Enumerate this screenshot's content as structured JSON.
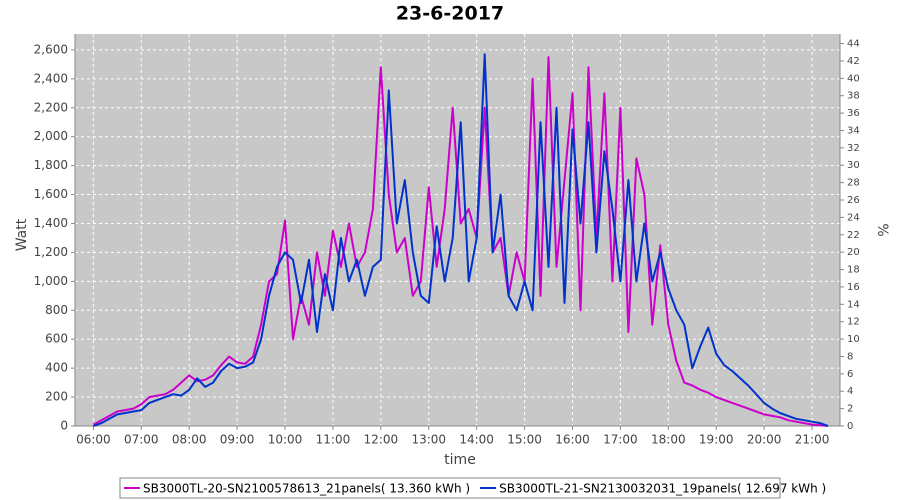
{
  "chart_data": {
    "type": "line",
    "title": "23-6-2017",
    "x_label": "time",
    "y_label": "Watt",
    "y2_label": "%",
    "x": [
      "06:00",
      "06:10",
      "06:20",
      "06:30",
      "06:40",
      "06:50",
      "07:00",
      "07:10",
      "07:20",
      "07:30",
      "07:40",
      "07:50",
      "08:00",
      "08:10",
      "08:20",
      "08:30",
      "08:40",
      "08:50",
      "09:00",
      "09:10",
      "09:20",
      "09:30",
      "09:40",
      "09:50",
      "10:00",
      "10:10",
      "10:20",
      "10:30",
      "10:40",
      "10:50",
      "11:00",
      "11:10",
      "11:20",
      "11:30",
      "11:40",
      "11:50",
      "12:00",
      "12:10",
      "12:20",
      "12:30",
      "12:40",
      "12:50",
      "13:00",
      "13:10",
      "13:20",
      "13:30",
      "13:40",
      "13:50",
      "14:00",
      "14:10",
      "14:20",
      "14:30",
      "14:40",
      "14:50",
      "15:00",
      "15:10",
      "15:20",
      "15:30",
      "15:40",
      "15:50",
      "16:00",
      "16:10",
      "16:20",
      "16:30",
      "16:40",
      "16:50",
      "17:00",
      "17:10",
      "17:20",
      "17:30",
      "17:40",
      "17:50",
      "18:00",
      "18:10",
      "18:20",
      "18:30",
      "18:40",
      "18:50",
      "19:00",
      "19:10",
      "19:20",
      "19:30",
      "19:40",
      "19:50",
      "20:00",
      "20:10",
      "20:20",
      "20:30",
      "20:40",
      "20:50",
      "21:00",
      "21:10",
      "21:20"
    ],
    "series": [
      {
        "name": "SB3000TL-20-SN2100578613_21panels( 13.360 kWh )",
        "color": "#cc00cc",
        "values": [
          10,
          40,
          70,
          100,
          110,
          120,
          150,
          200,
          210,
          220,
          250,
          300,
          350,
          310,
          320,
          350,
          420,
          480,
          440,
          430,
          480,
          700,
          1000,
          1050,
          1420,
          600,
          900,
          700,
          1200,
          900,
          1350,
          1100,
          1400,
          1100,
          1200,
          1500,
          2480,
          1600,
          1200,
          1300,
          900,
          1000,
          1650,
          1100,
          1500,
          2200,
          1400,
          1500,
          1300,
          2200,
          1200,
          1300,
          900,
          1200,
          1000,
          2400,
          900,
          2550,
          1100,
          1700,
          2300,
          800,
          2480,
          1300,
          2300,
          1000,
          2200,
          650,
          1850,
          1600,
          700,
          1250,
          700,
          450,
          300,
          280,
          250,
          230,
          200,
          180,
          160,
          140,
          120,
          100,
          80,
          70,
          60,
          40,
          30,
          20,
          10,
          5,
          0
        ]
      },
      {
        "name": "SB3000TL-21-SN2130032031_19panels( 12.697 kWh )",
        "color": "#0033cc",
        "values": [
          0,
          20,
          50,
          80,
          90,
          100,
          110,
          160,
          180,
          200,
          220,
          210,
          250,
          330,
          270,
          300,
          380,
          430,
          400,
          410,
          440,
          600,
          900,
          1100,
          1200,
          1150,
          850,
          1150,
          650,
          1050,
          800,
          1300,
          1000,
          1150,
          900,
          1100,
          1150,
          2320,
          1400,
          1700,
          1200,
          900,
          850,
          1380,
          1000,
          1300,
          2100,
          1000,
          1300,
          2570,
          1200,
          1600,
          900,
          800,
          1000,
          800,
          2100,
          1100,
          2200,
          850,
          2050,
          1400,
          2100,
          1200,
          1900,
          1500,
          1000,
          1700,
          1000,
          1400,
          1000,
          1200,
          950,
          800,
          700,
          400,
          550,
          680,
          500,
          420,
          380,
          330,
          280,
          220,
          160,
          120,
          90,
          70,
          50,
          40,
          30,
          20,
          0
        ]
      }
    ],
    "xlim": [
      "05:37",
      "21:35"
    ],
    "xticks": [
      "06:00",
      "07:00",
      "08:00",
      "09:00",
      "10:00",
      "11:00",
      "12:00",
      "13:00",
      "14:00",
      "15:00",
      "16:00",
      "17:00",
      "18:00",
      "19:00",
      "20:00",
      "21:00"
    ],
    "ylim": [
      0,
      2710
    ],
    "yticks": [
      0,
      200,
      400,
      600,
      800,
      {
        "value": 1000,
        "label": "1,000"
      },
      {
        "value": 1200,
        "label": "1,200"
      },
      {
        "value": 1400,
        "label": "1,400"
      },
      {
        "value": 1600,
        "label": "1,600"
      },
      {
        "value": 1800,
        "label": "1,800"
      },
      {
        "value": 2000,
        "label": "2,000"
      },
      {
        "value": 2200,
        "label": "2,200"
      },
      {
        "value": 2400,
        "label": "2,400"
      },
      {
        "value": 2600,
        "label": "2,600"
      }
    ],
    "y2lim": [
      0,
      45.1
    ],
    "y2ticks": [
      0,
      2,
      4,
      6,
      8,
      10,
      12,
      14,
      16,
      18,
      20,
      22,
      24,
      26,
      28,
      30,
      32,
      34,
      36,
      38,
      40,
      42,
      44
    ],
    "grid": true
  }
}
